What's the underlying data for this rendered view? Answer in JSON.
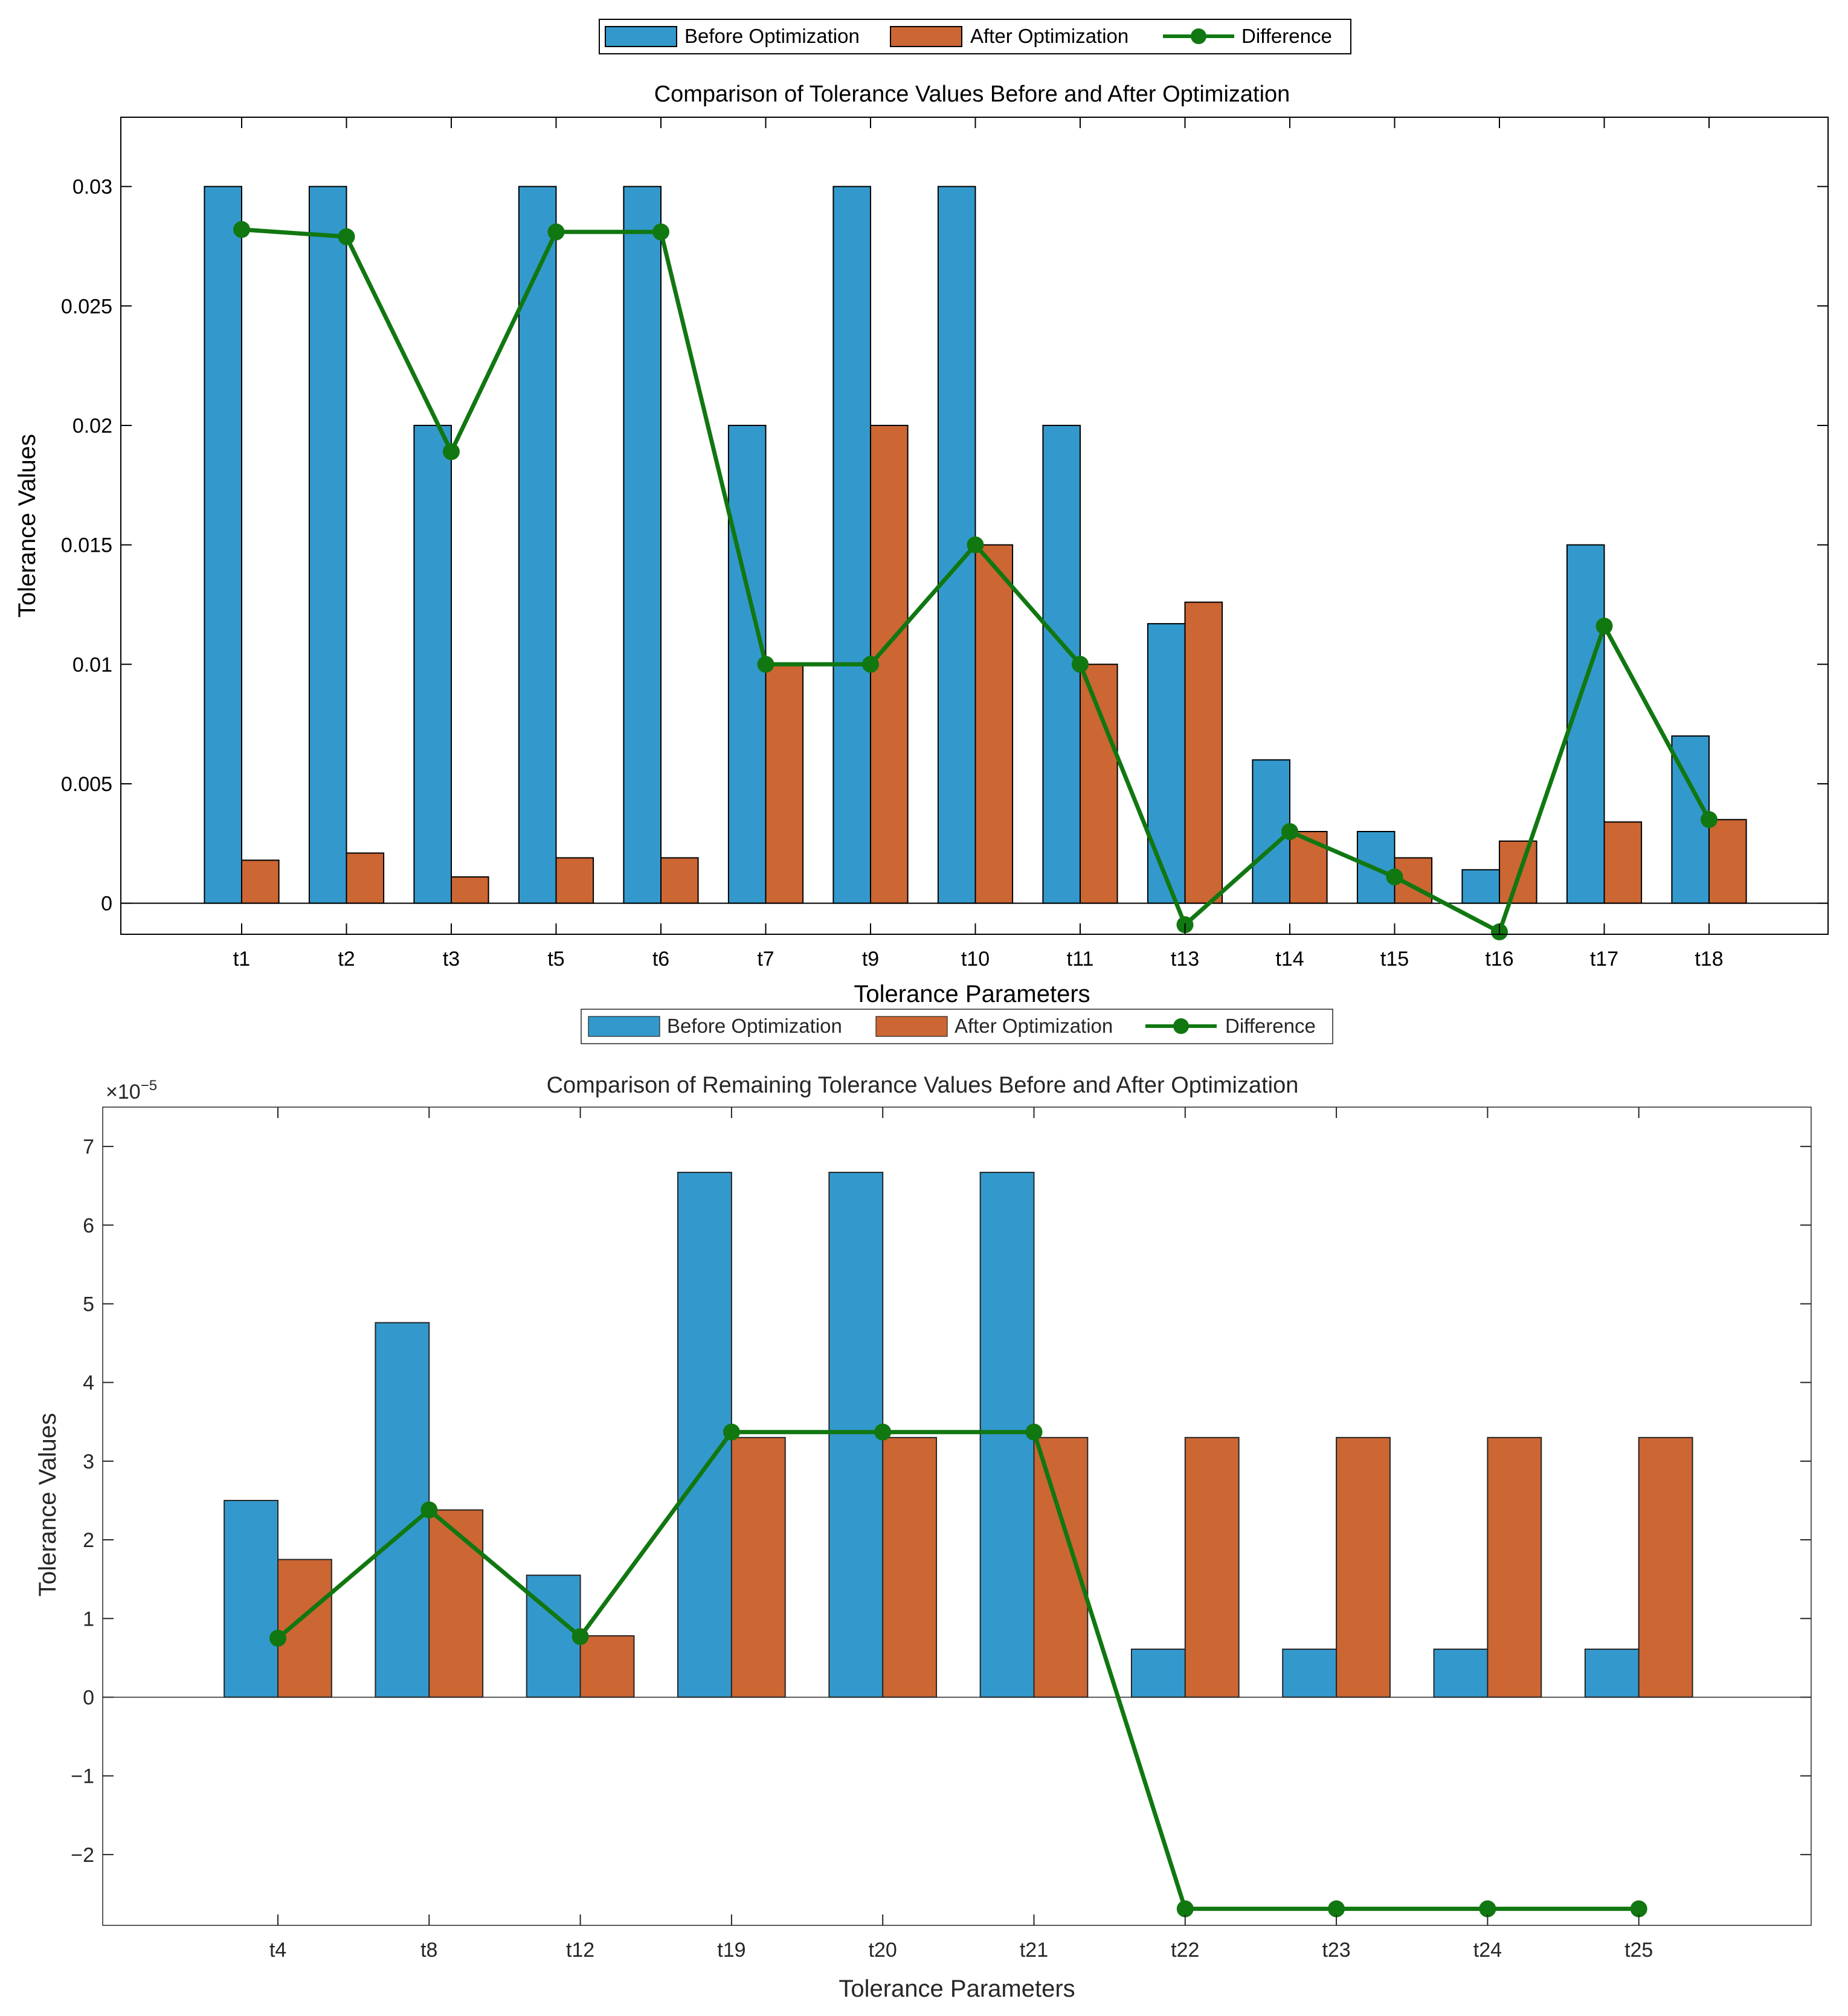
{
  "colors": {
    "before": "#3399cc",
    "after": "#cc6633",
    "difference": "#117711",
    "axis": "#000000",
    "axis_gray": "#262626"
  },
  "chart_data": [
    {
      "type": "bar",
      "title": "Comparison of Tolerance Values Before and After Optimization",
      "xlabel": "Tolerance Parameters",
      "ylabel": "Tolerance Values",
      "legend_placement": "top-center",
      "ylim": [
        -0.0013,
        0.0329
      ],
      "yticks": [
        0,
        0.005,
        0.01,
        0.015,
        0.02,
        0.025,
        0.03
      ],
      "ytick_labels": [
        "0",
        "0.005",
        "0.01",
        "0.015",
        "0.02",
        "0.025",
        "0.03"
      ],
      "categories": [
        "t1",
        "t2",
        "t3",
        "t5",
        "t6",
        "t7",
        "t9",
        "t10",
        "t11",
        "t13",
        "t14",
        "t15",
        "t16",
        "t17",
        "t18"
      ],
      "series": [
        {
          "name": "Before Optimization",
          "kind": "bar",
          "values": [
            0.03,
            0.03,
            0.02,
            0.03,
            0.03,
            0.02,
            0.03,
            0.03,
            0.02,
            0.0117,
            0.006,
            0.003,
            0.0014,
            0.015,
            0.007
          ]
        },
        {
          "name": "After Optimization",
          "kind": "bar",
          "values": [
            0.0018,
            0.0021,
            0.0011,
            0.0019,
            0.0019,
            0.01,
            0.02,
            0.015,
            0.01,
            0.0126,
            0.003,
            0.0019,
            0.0026,
            0.0034,
            0.0035
          ]
        },
        {
          "name": "Difference",
          "kind": "line",
          "values": [
            0.0282,
            0.0279,
            0.0189,
            0.0281,
            0.0281,
            0.01,
            0.01,
            0.015,
            0.01,
            -0.0009,
            0.003,
            0.0011,
            -0.0012,
            0.0116,
            0.0035
          ]
        }
      ]
    },
    {
      "type": "bar",
      "title": "Comparison of Remaining Tolerance Values Before and After Optimization",
      "xlabel": "Tolerance Parameters",
      "ylabel": "Tolerance Values",
      "legend_placement": "top-center",
      "exponent_label": "×10",
      "exponent_power": "−5",
      "ylim": [
        -2.9,
        7.5
      ],
      "yticks": [
        -2,
        -1,
        0,
        1,
        2,
        3,
        4,
        5,
        6,
        7
      ],
      "ytick_labels": [
        "−2",
        "−1",
        "0",
        "1",
        "2",
        "3",
        "4",
        "5",
        "6",
        "7"
      ],
      "categories": [
        "t4",
        "t8",
        "t12",
        "t19",
        "t20",
        "t21",
        "t22",
        "t23",
        "t24",
        "t25"
      ],
      "series": [
        {
          "name": "Before Optimization",
          "kind": "bar",
          "values": [
            2.5,
            4.76,
            1.55,
            6.67,
            6.67,
            6.67,
            0.61,
            0.61,
            0.61,
            0.61
          ]
        },
        {
          "name": "After Optimization",
          "kind": "bar",
          "values": [
            1.75,
            2.38,
            0.78,
            3.3,
            3.3,
            3.3,
            3.3,
            3.3,
            3.3,
            3.3
          ]
        },
        {
          "name": "Difference",
          "kind": "line",
          "values": [
            0.75,
            2.38,
            0.77,
            3.37,
            3.37,
            3.37,
            -2.69,
            -2.69,
            -2.69,
            -2.69
          ]
        }
      ]
    }
  ]
}
